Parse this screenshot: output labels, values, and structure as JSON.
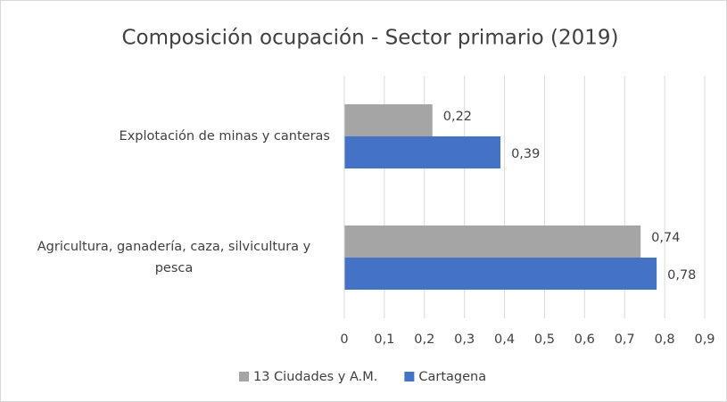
{
  "chart_data": {
    "type": "barh",
    "title": "Composición ocupación - Sector primario (2019)",
    "categories": [
      "Explotación de minas y canteras",
      "Agricultura, ganadería, caza, silvicultura y pesca"
    ],
    "series": [
      {
        "name": "13 Ciudades y A.M.",
        "color": "#a5a5a5",
        "values": [
          0.22,
          0.74
        ],
        "value_labels": [
          "0,22",
          "0,74"
        ]
      },
      {
        "name": "Cartagena",
        "color": "#4472c4",
        "values": [
          0.39,
          0.78
        ],
        "value_labels": [
          "0,39",
          "0,78"
        ]
      }
    ],
    "xlim": [
      0,
      0.9
    ],
    "xticks": [
      0,
      {
        "value": 0.1,
        "label": "0,1"
      },
      {
        "value": 0.2,
        "label": "0,2"
      },
      {
        "value": 0.3,
        "label": "0,3"
      },
      {
        "value": 0.4,
        "label": "0,4"
      },
      {
        "value": 0.5,
        "label": "0,5"
      },
      {
        "value": 0.6,
        "label": "0,6"
      },
      {
        "value": 0.7,
        "label": "0,7"
      },
      {
        "value": 0.8,
        "label": "0,8"
      },
      {
        "value": 0.9,
        "label": "0,9"
      }
    ],
    "grid": true,
    "legend": "bottom"
  }
}
